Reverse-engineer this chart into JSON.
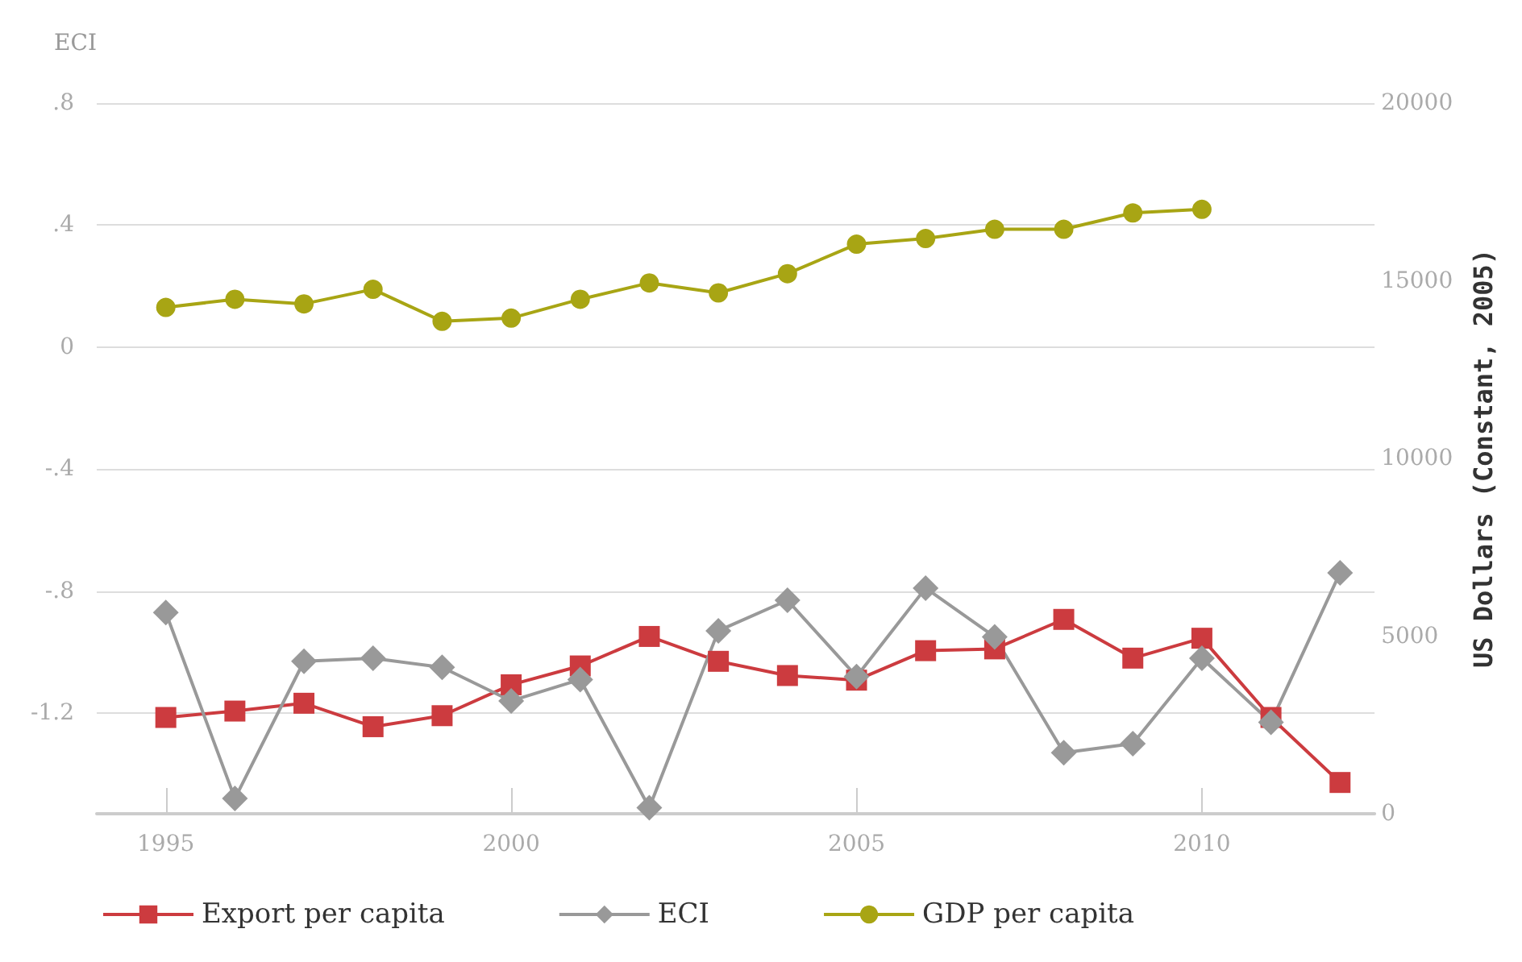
{
  "chart_data": {
    "type": "line",
    "ylabel": "ECI",
    "y2label": "US Dollars (Constant, 2005)",
    "x": [
      1995,
      1996,
      1997,
      1998,
      1999,
      2000,
      2001,
      2002,
      2003,
      2004,
      2005,
      2006,
      2007,
      2008,
      2009,
      2010,
      2011,
      2012
    ],
    "xlim": [
      1994,
      2012.5
    ],
    "xticks": [
      1995,
      2000,
      2005,
      2010
    ],
    "ylim": [
      -1.53,
      0.8
    ],
    "yticks": [
      {
        "value": 0.8,
        "label": ".8"
      },
      {
        "value": 0.4,
        "label": ".4"
      },
      0,
      {
        "value": -0.4,
        "label": "-.4"
      },
      {
        "value": -0.8,
        "label": "-.8"
      },
      {
        "value": -1.2,
        "label": "-1.2"
      }
    ],
    "y2lim": [
      0,
      20000
    ],
    "y2ticks": [
      0,
      5000,
      10000,
      15000,
      20000
    ],
    "grid": "y",
    "legend": "bottom",
    "series": [
      {
        "name": "Export per capita",
        "color": "#cc3b3f",
        "axis": "y2",
        "marker": "square",
        "values": [
          2710,
          2890,
          3110,
          2450,
          2760,
          3630,
          4160,
          4990,
          4290,
          3890,
          3760,
          4590,
          4640,
          5470,
          4380,
          4940,
          2710,
          880
        ]
      },
      {
        "name": "ECI",
        "color": "#999999",
        "marker": "diamond",
        "values": [
          -0.87,
          -1.48,
          -1.03,
          -1.02,
          -1.05,
          -1.16,
          -1.09,
          -1.51,
          -0.93,
          -0.83,
          -1.08,
          -0.79,
          -0.95,
          -1.33,
          -1.3,
          -1.02,
          -1.23,
          -0.74
        ]
      },
      {
        "name": "GDP per capita",
        "color": "#a8a514",
        "axis": "y2",
        "marker": "circle",
        "x": [
          1995,
          1996,
          1997,
          1998,
          1999,
          2000,
          2001,
          2002,
          2003,
          2004,
          2005,
          2006,
          2007,
          2008,
          2009,
          2010
        ],
        "values": [
          14250,
          14480,
          14350,
          14760,
          13860,
          13950,
          14480,
          14940,
          14660,
          15200,
          16030,
          16190,
          16450,
          16450,
          16910,
          17010
        ]
      }
    ]
  }
}
